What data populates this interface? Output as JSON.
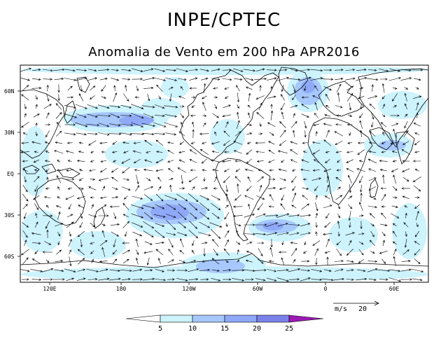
{
  "header": {
    "title": "INPE/CPTEC",
    "subtitle": "Anomalia de Vento em 200 hPa APR2016"
  },
  "axes": {
    "lat_ticks": [
      "60N",
      "30N",
      "EQ",
      "30S",
      "60S"
    ],
    "lon_ticks": [
      "120E",
      "180",
      "120W",
      "60W",
      "0",
      "60E"
    ]
  },
  "colorbar": {
    "levels": [
      "5",
      "10",
      "15",
      "20",
      "25"
    ],
    "colors": [
      "#ffffff",
      "#cdf3fd",
      "#a7c8fd",
      "#8fa8f7",
      "#7a82ea",
      "#9b1ab5"
    ]
  },
  "reference_vector": {
    "unit": "m/s",
    "value": "20"
  },
  "map_style": {
    "coastline_color": "#000000",
    "vector_color": "#000000"
  }
}
